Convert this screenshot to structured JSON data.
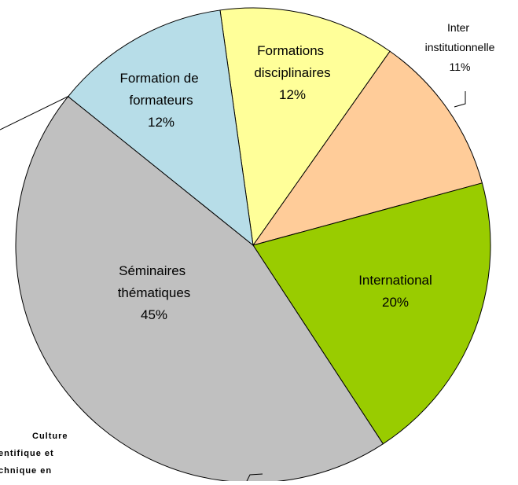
{
  "chart_data": {
    "type": "pie",
    "categories": [
      "Formations disciplinaires",
      "Inter institutionnelle",
      "International",
      "Séminaires thématiques",
      "Formation de formateurs"
    ],
    "values": [
      12,
      11,
      20,
      45,
      12
    ],
    "value_labels": [
      "12%",
      "11%",
      "20%",
      "45%",
      "12%"
    ],
    "colors": [
      "#ffff99",
      "#ffcc99",
      "#99cc00",
      "#c0c0c0",
      "#b7dde8"
    ],
    "annotations": [
      "Culture",
      "entifique et",
      "chnique en"
    ]
  }
}
